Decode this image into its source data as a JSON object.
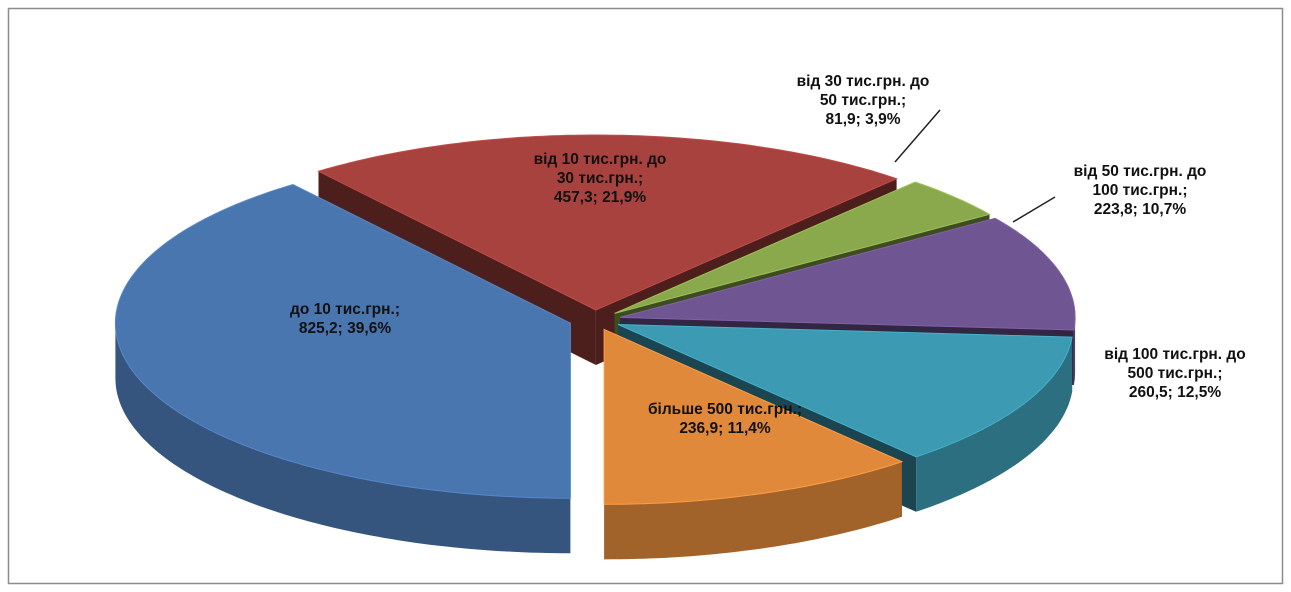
{
  "chart_data": {
    "type": "pie",
    "categories": [
      "до 10 тис.грн.;",
      "від 10 тис.грн. до 30 тис.грн.;",
      "від 30 тис.грн. до 50 тис.грн.;",
      "від 50 тис.грн. до 100 тис.грн.;",
      "від 100 тис.грн. до 500 тис.грн.;",
      "більше 500 тис.грн.;"
    ],
    "values": [
      825.2,
      457.3,
      81.9,
      223.8,
      260.5,
      236.9
    ],
    "value_labels": [
      "825,2;",
      "457,3;",
      "81,9;",
      "223,8;",
      "260,5;",
      "236,9;"
    ],
    "percents": [
      39.6,
      21.9,
      3.9,
      10.7,
      12.5,
      11.4
    ],
    "percent_labels": [
      "39,6%",
      "21,9%",
      "3,9%",
      "10,7%",
      "12,5%",
      "11,4%"
    ],
    "colors": [
      "#4a76b0",
      "#a8423f",
      "#8aa84c",
      "#6f5592",
      "#3c9ab2",
      "#e0893b"
    ]
  }
}
